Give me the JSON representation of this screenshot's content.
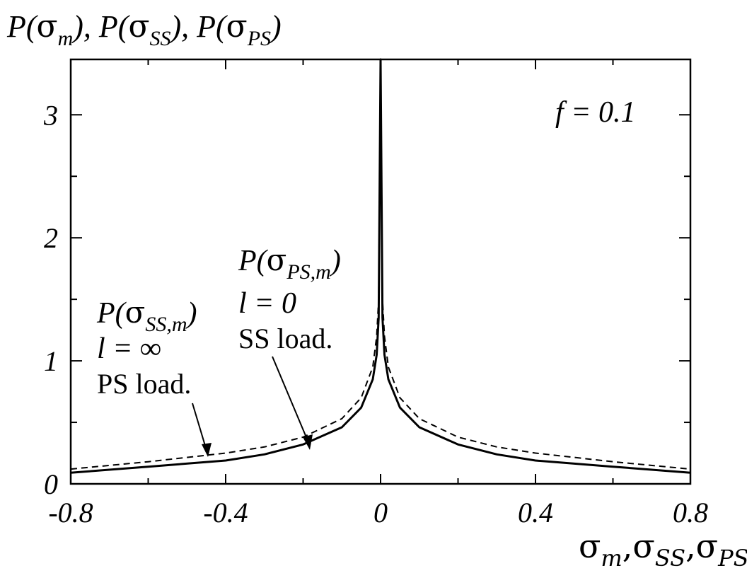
{
  "chart_data": {
    "type": "line",
    "title": "",
    "ylabel": "P(σm), P(σSS), P(σPS)",
    "xlabel": "σm,σSS,σPS",
    "xlim": [
      -0.8,
      0.8
    ],
    "ylim": [
      0,
      3.45
    ],
    "x_ticks": [
      -0.8,
      -0.4,
      0,
      0.4,
      0.8
    ],
    "x_tick_labels": [
      "-0.8",
      "-0.4",
      "0",
      "0.4",
      "0.8"
    ],
    "y_ticks": [
      0,
      1,
      2,
      3
    ],
    "y_tick_labels": [
      "0",
      "1",
      "2",
      "3"
    ],
    "grid": false,
    "series": [
      {
        "style": "solid",
        "x": [
          -0.8,
          -0.6,
          -0.4,
          -0.3,
          -0.2,
          -0.1,
          -0.05,
          -0.02,
          -0.01,
          -0.005,
          0,
          0.005,
          0.01,
          0.02,
          0.05,
          0.1,
          0.2,
          0.3,
          0.4,
          0.6,
          0.8
        ],
        "y": [
          0.09,
          0.14,
          0.19,
          0.24,
          0.32,
          0.46,
          0.62,
          0.85,
          1.05,
          1.35,
          3.45,
          1.35,
          1.05,
          0.85,
          0.62,
          0.46,
          0.32,
          0.24,
          0.19,
          0.14,
          0.09
        ]
      },
      {
        "style": "dashed",
        "x": [
          -0.8,
          -0.6,
          -0.4,
          -0.3,
          -0.2,
          -0.1,
          -0.05,
          -0.02,
          -0.01,
          -0.005,
          0,
          0.005,
          0.01,
          0.02,
          0.05,
          0.1,
          0.2,
          0.3,
          0.4,
          0.6,
          0.8
        ],
        "y": [
          0.12,
          0.18,
          0.25,
          0.3,
          0.38,
          0.53,
          0.7,
          0.95,
          1.2,
          1.5,
          3.45,
          1.5,
          1.2,
          0.95,
          0.7,
          0.53,
          0.38,
          0.3,
          0.25,
          0.18,
          0.12
        ]
      }
    ],
    "annotations": {
      "f_label": "f = 0.1",
      "ps_curve": {
        "label": "P(σPS,m)",
        "line1": "l = 0",
        "line2": "SS load.",
        "arrow_to": [
          -0.19,
          0.34
        ]
      },
      "ss_curve": {
        "label": "P(σSS,m)",
        "line1": "l = ∞",
        "line2": "PS load.",
        "arrow_to": [
          -0.44,
          0.24
        ]
      }
    }
  }
}
